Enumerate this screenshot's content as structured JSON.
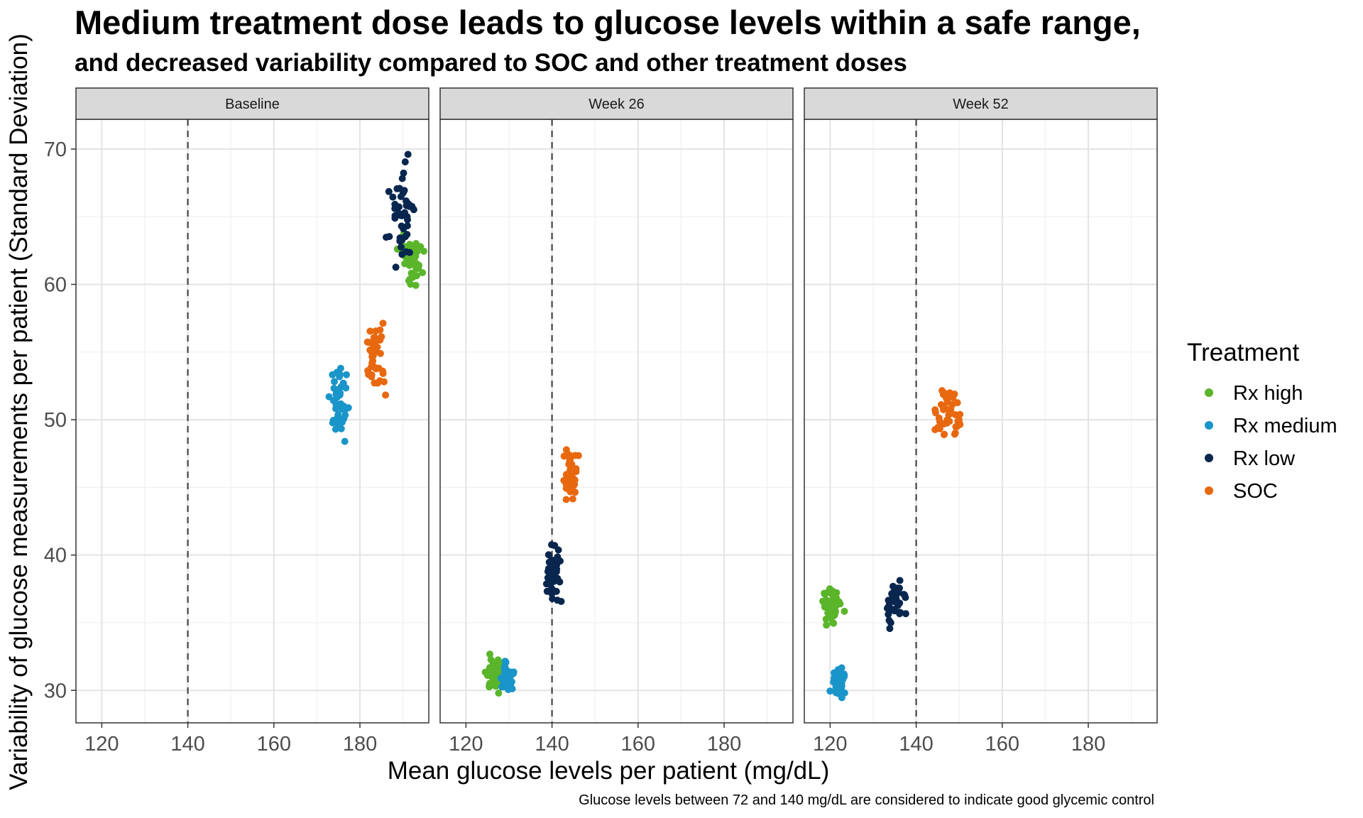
{
  "title": "Medium treatment dose leads to glucose levels within a safe range,",
  "subtitle": "and decreased variability compared to SOC and other treatment doses",
  "caption": "Glucose levels between 72 and 140 mg/dL are considered to indicate good glycemic control",
  "legend": {
    "title": "Treatment",
    "items": [
      {
        "label": "Rx high",
        "color": "#5BB52B"
      },
      {
        "label": "Rx medium",
        "color": "#1A95C9"
      },
      {
        "label": "Rx low",
        "color": "#08264E"
      },
      {
        "label": "SOC",
        "color": "#E8680F"
      }
    ]
  },
  "chart_data": {
    "type": "scatter",
    "xlabel": "Mean glucose levels per patient (mg/dL)",
    "ylabel": "Variability of glucose measurements per patient (Standard Deviation)",
    "xlim": [
      114,
      196
    ],
    "ylim": [
      27.6,
      72.2
    ],
    "x_ticks": [
      "120",
      "140",
      "160",
      "180"
    ],
    "y_ticks": [
      "30",
      "40",
      "50",
      "60",
      "70"
    ],
    "reference_line_x": 140,
    "grid": true,
    "legend_position": "right",
    "facets": [
      {
        "label": "Baseline",
        "series": [
          {
            "name": "Rx high",
            "center": [
              192,
              61.8
            ],
            "spread": [
              5,
              3.5
            ],
            "n": 50
          },
          {
            "name": "Rx medium",
            "center": [
              175,
              51.3
            ],
            "spread": [
              4.5,
              4.6
            ],
            "n": 40
          },
          {
            "name": "Rx low",
            "center": [
              190,
              65.3
            ],
            "spread": [
              6,
              7
            ],
            "n": 45
          },
          {
            "name": "SOC",
            "center": [
              184,
              54.3
            ],
            "spread": [
              5,
              4.6
            ],
            "n": 40
          }
        ]
      },
      {
        "label": "Week 26",
        "series": [
          {
            "name": "Rx high",
            "center": [
              127,
              31.2
            ],
            "spread": [
              4,
              2.3
            ],
            "n": 50
          },
          {
            "name": "Rx medium",
            "center": [
              129.5,
              30.9
            ],
            "spread": [
              3,
              2.2
            ],
            "n": 40
          },
          {
            "name": "Rx low",
            "center": [
              140,
              38.6
            ],
            "spread": [
              4,
              4
            ],
            "n": 40
          },
          {
            "name": "SOC",
            "center": [
              144,
              45.7
            ],
            "spread": [
              3.5,
              4.2
            ],
            "n": 40
          }
        ]
      },
      {
        "label": "Week 52",
        "series": [
          {
            "name": "Rx high",
            "center": [
              120.5,
              36.2
            ],
            "spread": [
              4.5,
              2.9
            ],
            "n": 40
          },
          {
            "name": "Rx medium",
            "center": [
              122,
              30.6
            ],
            "spread": [
              3.5,
              2.2
            ],
            "n": 40
          },
          {
            "name": "Rx low",
            "center": [
              135,
              36.5
            ],
            "spread": [
              4.5,
              3.3
            ],
            "n": 40
          },
          {
            "name": "SOC",
            "center": [
              147.5,
              50.6
            ],
            "spread": [
              5,
              4
            ],
            "n": 40
          }
        ]
      }
    ]
  }
}
